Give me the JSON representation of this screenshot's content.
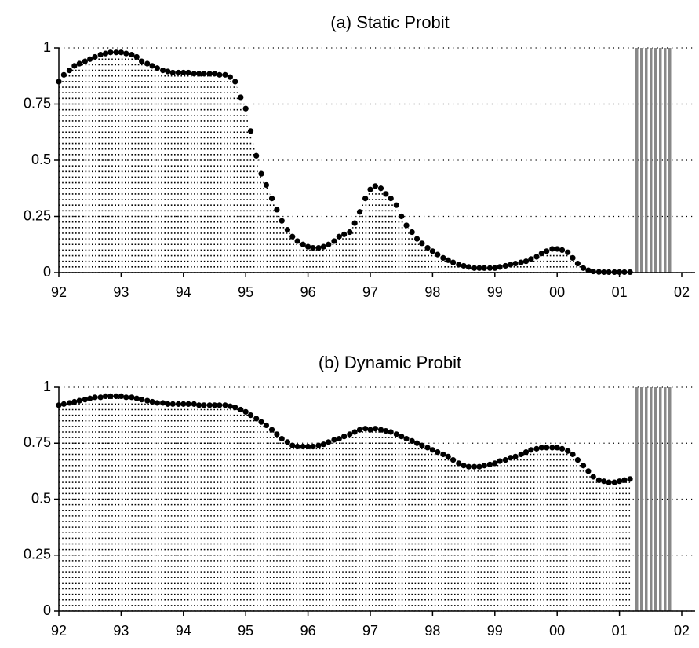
{
  "chart_data": [
    {
      "type": "scatter",
      "title": "(a) Static Probit",
      "color": "#000000",
      "grid": true,
      "xlim": [
        1992,
        2002
      ],
      "ylim": [
        0,
        1
      ],
      "xticks": [
        {
          "value": 1992,
          "label": "92"
        },
        {
          "value": 1993,
          "label": "93"
        },
        {
          "value": 1994,
          "label": "94"
        },
        {
          "value": 1995,
          "label": "95"
        },
        {
          "value": 1996,
          "label": "96"
        },
        {
          "value": 1997,
          "label": "97"
        },
        {
          "value": 1998,
          "label": "98"
        },
        {
          "value": 1999,
          "label": "99"
        },
        {
          "value": 2000,
          "label": "00"
        },
        {
          "value": 2001,
          "label": "01"
        },
        {
          "value": 2002,
          "label": "02"
        }
      ],
      "yticks": [
        0,
        0.25,
        0.5,
        0.75,
        1
      ],
      "shaded_region": [
        2001.25,
        2001.83
      ],
      "shade_color": "#888888",
      "x": [
        1992.0,
        1992.08,
        1992.17,
        1992.25,
        1992.33,
        1992.42,
        1992.5,
        1992.58,
        1992.67,
        1992.75,
        1992.83,
        1992.92,
        1993.0,
        1993.08,
        1993.17,
        1993.25,
        1993.33,
        1993.42,
        1993.5,
        1993.58,
        1993.67,
        1993.75,
        1993.83,
        1993.92,
        1994.0,
        1994.08,
        1994.17,
        1994.25,
        1994.33,
        1994.42,
        1994.5,
        1994.58,
        1994.67,
        1994.75,
        1994.83,
        1994.92,
        1995.0,
        1995.08,
        1995.17,
        1995.25,
        1995.33,
        1995.42,
        1995.5,
        1995.58,
        1995.67,
        1995.75,
        1995.83,
        1995.92,
        1996.0,
        1996.08,
        1996.17,
        1996.25,
        1996.33,
        1996.42,
        1996.5,
        1996.58,
        1996.67,
        1996.75,
        1996.83,
        1996.92,
        1997.0,
        1997.08,
        1997.17,
        1997.25,
        1997.33,
        1997.42,
        1997.5,
        1997.58,
        1997.67,
        1997.75,
        1997.83,
        1997.92,
        1998.0,
        1998.08,
        1998.17,
        1998.25,
        1998.33,
        1998.42,
        1998.5,
        1998.58,
        1998.67,
        1998.75,
        1998.83,
        1998.92,
        1999.0,
        1999.08,
        1999.17,
        1999.25,
        1999.33,
        1999.42,
        1999.5,
        1999.58,
        1999.67,
        1999.75,
        1999.83,
        1999.92,
        2000.0,
        2000.08,
        2000.17,
        2000.25,
        2000.33,
        2000.42,
        2000.5,
        2000.58,
        2000.67,
        2000.75,
        2000.83,
        2000.92,
        2001.0,
        2001.08,
        2001.17
      ],
      "values": [
        0.85,
        0.88,
        0.9,
        0.92,
        0.93,
        0.94,
        0.95,
        0.96,
        0.97,
        0.975,
        0.98,
        0.98,
        0.98,
        0.975,
        0.97,
        0.96,
        0.94,
        0.93,
        0.92,
        0.91,
        0.9,
        0.895,
        0.89,
        0.89,
        0.89,
        0.89,
        0.885,
        0.885,
        0.885,
        0.885,
        0.885,
        0.88,
        0.88,
        0.87,
        0.85,
        0.78,
        0.73,
        0.63,
        0.52,
        0.44,
        0.39,
        0.33,
        0.28,
        0.23,
        0.19,
        0.16,
        0.14,
        0.125,
        0.115,
        0.11,
        0.11,
        0.115,
        0.125,
        0.14,
        0.16,
        0.17,
        0.18,
        0.22,
        0.27,
        0.33,
        0.37,
        0.385,
        0.375,
        0.35,
        0.33,
        0.3,
        0.25,
        0.21,
        0.18,
        0.15,
        0.13,
        0.11,
        0.095,
        0.08,
        0.065,
        0.055,
        0.045,
        0.035,
        0.03,
        0.025,
        0.02,
        0.02,
        0.02,
        0.02,
        0.02,
        0.025,
        0.03,
        0.035,
        0.04,
        0.045,
        0.05,
        0.06,
        0.07,
        0.085,
        0.095,
        0.105,
        0.105,
        0.1,
        0.09,
        0.065,
        0.04,
        0.02,
        0.01,
        0.005,
        0.003,
        0.002,
        0.002,
        0.002,
        0.002,
        0.002,
        0.002
      ]
    },
    {
      "type": "scatter",
      "title": "(b) Dynamic Probit",
      "color": "#000000",
      "grid": true,
      "xlim": [
        1992,
        2002
      ],
      "ylim": [
        0,
        1
      ],
      "xticks": [
        {
          "value": 1992,
          "label": "92"
        },
        {
          "value": 1993,
          "label": "93"
        },
        {
          "value": 1994,
          "label": "94"
        },
        {
          "value": 1995,
          "label": "95"
        },
        {
          "value": 1996,
          "label": "96"
        },
        {
          "value": 1997,
          "label": "97"
        },
        {
          "value": 1998,
          "label": "98"
        },
        {
          "value": 1999,
          "label": "99"
        },
        {
          "value": 2000,
          "label": "00"
        },
        {
          "value": 2001,
          "label": "01"
        },
        {
          "value": 2002,
          "label": "02"
        }
      ],
      "yticks": [
        0,
        0.25,
        0.5,
        0.75,
        1
      ],
      "shaded_region": [
        2001.25,
        2001.83
      ],
      "shade_color": "#888888",
      "x": [
        1992.0,
        1992.08,
        1992.17,
        1992.25,
        1992.33,
        1992.42,
        1992.5,
        1992.58,
        1992.67,
        1992.75,
        1992.83,
        1992.92,
        1993.0,
        1993.08,
        1993.17,
        1993.25,
        1993.33,
        1993.42,
        1993.5,
        1993.58,
        1993.67,
        1993.75,
        1993.83,
        1993.92,
        1994.0,
        1994.08,
        1994.17,
        1994.25,
        1994.33,
        1994.42,
        1994.5,
        1994.58,
        1994.67,
        1994.75,
        1994.83,
        1994.92,
        1995.0,
        1995.08,
        1995.17,
        1995.25,
        1995.33,
        1995.42,
        1995.5,
        1995.58,
        1995.67,
        1995.75,
        1995.83,
        1995.92,
        1996.0,
        1996.08,
        1996.17,
        1996.25,
        1996.33,
        1996.42,
        1996.5,
        1996.58,
        1996.67,
        1996.75,
        1996.83,
        1996.92,
        1997.0,
        1997.08,
        1997.17,
        1997.25,
        1997.33,
        1997.42,
        1997.5,
        1997.58,
        1997.67,
        1997.75,
        1997.83,
        1997.92,
        1998.0,
        1998.08,
        1998.17,
        1998.25,
        1998.33,
        1998.42,
        1998.5,
        1998.58,
        1998.67,
        1998.75,
        1998.83,
        1998.92,
        1999.0,
        1999.08,
        1999.17,
        1999.25,
        1999.33,
        1999.42,
        1999.5,
        1999.58,
        1999.67,
        1999.75,
        1999.83,
        1999.92,
        2000.0,
        2000.08,
        2000.17,
        2000.25,
        2000.33,
        2000.42,
        2000.5,
        2000.58,
        2000.67,
        2000.75,
        2000.83,
        2000.92,
        2001.0,
        2001.08,
        2001.17
      ],
      "values": [
        0.92,
        0.925,
        0.93,
        0.935,
        0.94,
        0.945,
        0.95,
        0.955,
        0.955,
        0.96,
        0.96,
        0.96,
        0.96,
        0.955,
        0.955,
        0.95,
        0.945,
        0.94,
        0.935,
        0.93,
        0.93,
        0.925,
        0.925,
        0.925,
        0.925,
        0.925,
        0.925,
        0.92,
        0.92,
        0.92,
        0.92,
        0.92,
        0.92,
        0.915,
        0.91,
        0.9,
        0.89,
        0.875,
        0.86,
        0.845,
        0.83,
        0.81,
        0.79,
        0.77,
        0.755,
        0.74,
        0.735,
        0.735,
        0.735,
        0.735,
        0.74,
        0.745,
        0.755,
        0.765,
        0.77,
        0.78,
        0.79,
        0.8,
        0.81,
        0.815,
        0.81,
        0.815,
        0.81,
        0.805,
        0.8,
        0.79,
        0.78,
        0.77,
        0.76,
        0.75,
        0.74,
        0.73,
        0.72,
        0.71,
        0.7,
        0.69,
        0.675,
        0.66,
        0.65,
        0.645,
        0.645,
        0.645,
        0.65,
        0.655,
        0.66,
        0.67,
        0.675,
        0.685,
        0.69,
        0.7,
        0.71,
        0.72,
        0.725,
        0.73,
        0.73,
        0.73,
        0.73,
        0.725,
        0.715,
        0.7,
        0.675,
        0.65,
        0.625,
        0.6,
        0.585,
        0.58,
        0.575,
        0.575,
        0.58,
        0.585,
        0.59
      ]
    }
  ]
}
